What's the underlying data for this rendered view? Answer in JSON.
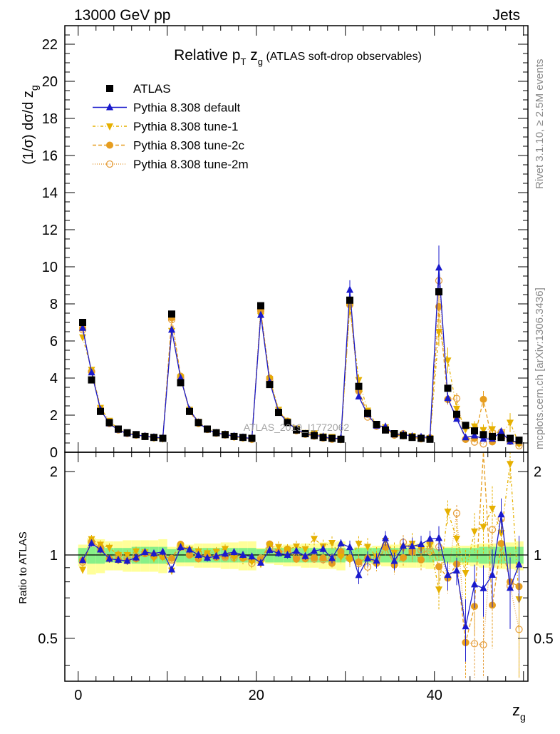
{
  "header": {
    "left": "13000 GeV pp",
    "right": "Jets"
  },
  "side_labels": {
    "rivet": "Rivet 3.1.10, ≥ 2.5M events",
    "mcplots": "mcplots.cern.ch [arXiv:1306.3436]"
  },
  "watermark": "ATLAS_2019_I1772062",
  "chart_data": {
    "type": "scatter",
    "title_parts": {
      "main": "Relative p",
      "sub1": "T",
      "mid": " z",
      "sub2": "g",
      "suffix": " (ATLAS soft-drop observables)"
    },
    "ylabel_main": {
      "pre": "(1/σ) dσ/d z",
      "sub": "g"
    },
    "xlabel": {
      "main": "z",
      "sub": "g"
    },
    "ylabel_ratio": "Ratio to ATLAS",
    "xlim": [
      -1.5,
      50.5
    ],
    "ylim_main": [
      0,
      23
    ],
    "ylim_ratio": [
      0.35,
      2.35
    ],
    "x_ticks": [
      "0",
      "20",
      "40"
    ],
    "y_ticks_main": [
      "0",
      "2",
      "4",
      "6",
      "8",
      "10",
      "12",
      "14",
      "16",
      "18",
      "20",
      "22"
    ],
    "y_ticks_ratio": [
      "0.5",
      "1",
      "2"
    ],
    "legend": [
      "ATLAS",
      "Pythia 8.308 default",
      "Pythia 8.308 tune-1",
      "Pythia 8.308 tune-2c",
      "Pythia 8.308 tune-2m"
    ],
    "legend_position": "top-left",
    "colors": {
      "atlas": "#000000",
      "default": "#1a1acc",
      "tune1": "#e6b000",
      "tune2c": "#e69d1f",
      "tune2m": "#e6a040",
      "band_inner": "#88f088",
      "band_outer": "#ffff99"
    },
    "x": [
      0.5,
      1.5,
      2.5,
      3.5,
      4.5,
      5.5,
      6.5,
      7.5,
      8.5,
      9.5,
      10.5,
      11.5,
      12.5,
      13.5,
      14.5,
      15.5,
      16.5,
      17.5,
      18.5,
      19.5,
      20.5,
      21.5,
      22.5,
      23.5,
      24.5,
      25.5,
      26.5,
      27.5,
      28.5,
      29.5,
      30.5,
      31.5,
      32.5,
      33.5,
      34.5,
      35.5,
      36.5,
      37.5,
      38.5,
      39.5,
      40.5,
      41.5,
      42.5,
      43.5,
      44.5,
      45.5,
      46.5,
      47.5,
      48.5,
      49.5
    ],
    "series": [
      {
        "name": "ATLAS",
        "values": [
          7.0,
          3.9,
          2.2,
          1.6,
          1.25,
          1.05,
          0.95,
          0.85,
          0.8,
          0.75,
          7.45,
          3.75,
          2.2,
          1.6,
          1.25,
          1.05,
          0.95,
          0.85,
          0.8,
          0.75,
          7.9,
          3.65,
          2.15,
          1.6,
          1.2,
          1.0,
          0.9,
          0.8,
          0.75,
          0.7,
          8.2,
          3.55,
          2.1,
          1.5,
          1.2,
          1.0,
          0.9,
          0.8,
          0.75,
          0.7,
          8.65,
          3.45,
          2.05,
          1.45,
          1.15,
          0.95,
          0.85,
          0.8,
          0.75,
          0.65
        ],
        "band_inner": [
          0.06,
          0.07,
          0.07,
          0.06,
          0.06,
          0.06,
          0.07,
          0.07,
          0.07,
          0.07,
          0.05,
          0.06,
          0.06,
          0.06,
          0.06,
          0.06,
          0.06,
          0.06,
          0.06,
          0.06,
          0.05,
          0.06,
          0.06,
          0.06,
          0.06,
          0.06,
          0.06,
          0.06,
          0.06,
          0.06,
          0.05,
          0.06,
          0.06,
          0.06,
          0.06,
          0.06,
          0.06,
          0.06,
          0.06,
          0.06,
          0.05,
          0.06,
          0.06,
          0.06,
          0.06,
          0.07,
          0.07,
          0.07,
          0.07,
          0.07
        ],
        "band_outer": [
          0.09,
          0.15,
          0.14,
          0.12,
          0.12,
          0.13,
          0.13,
          0.13,
          0.13,
          0.14,
          0.07,
          0.09,
          0.09,
          0.1,
          0.1,
          0.1,
          0.11,
          0.11,
          0.12,
          0.12,
          0.06,
          0.07,
          0.08,
          0.09,
          0.09,
          0.1,
          0.1,
          0.11,
          0.11,
          0.12,
          0.05,
          0.07,
          0.07,
          0.08,
          0.09,
          0.09,
          0.1,
          0.1,
          0.1,
          0.11,
          0.05,
          0.07,
          0.08,
          0.08,
          0.09,
          0.1,
          0.1,
          0.11,
          0.11,
          0.12
        ]
      },
      {
        "name": "Pythia 8.308 default",
        "values": [
          6.7,
          4.3,
          2.3,
          1.55,
          1.2,
          1.0,
          0.93,
          0.87,
          0.81,
          0.77,
          6.6,
          4.0,
          2.3,
          1.6,
          1.22,
          1.04,
          0.96,
          0.87,
          0.8,
          0.74,
          7.4,
          3.8,
          2.18,
          1.6,
          1.24,
          0.99,
          0.93,
          0.84,
          0.73,
          0.77,
          8.75,
          3.0,
          2.04,
          1.43,
          1.38,
          0.95,
          0.97,
          0.86,
          0.82,
          0.8,
          9.95,
          2.92,
          1.8,
          0.8,
          0.9,
          0.72,
          0.72,
          1.12,
          0.57,
          0.6
        ],
        "ratio_err": [
          0.02,
          0.03,
          0.03,
          0.03,
          0.03,
          0.03,
          0.03,
          0.03,
          0.03,
          0.03,
          0.02,
          0.03,
          0.03,
          0.03,
          0.03,
          0.03,
          0.03,
          0.03,
          0.03,
          0.03,
          0.02,
          0.03,
          0.03,
          0.03,
          0.03,
          0.03,
          0.03,
          0.04,
          0.04,
          0.04,
          0.06,
          0.06,
          0.06,
          0.06,
          0.07,
          0.07,
          0.07,
          0.08,
          0.08,
          0.08,
          0.12,
          0.1,
          0.1,
          0.14,
          0.14,
          0.16,
          0.2,
          0.2,
          0.22,
          0.25
        ]
      },
      {
        "name": "Pythia 8.308 tune-1",
        "values": [
          6.2,
          4.45,
          2.4,
          1.7,
          1.25,
          1.05,
          0.98,
          0.87,
          0.78,
          0.74,
          6.55,
          4.05,
          2.3,
          1.65,
          1.27,
          1.08,
          1.0,
          0.83,
          0.78,
          0.71,
          7.35,
          3.95,
          2.3,
          1.67,
          1.29,
          1.05,
          1.03,
          0.86,
          0.83,
          0.69,
          7.9,
          3.9,
          2.25,
          1.48,
          1.35,
          1.02,
          0.95,
          0.88,
          0.79,
          0.76,
          6.5,
          4.95,
          2.35,
          1.25,
          1.4,
          1.2,
          1.25,
          0.96,
          1.6,
          0.45
        ],
        "ratio_err": [
          0.03,
          0.04,
          0.04,
          0.04,
          0.04,
          0.04,
          0.04,
          0.04,
          0.04,
          0.04,
          0.03,
          0.04,
          0.04,
          0.04,
          0.04,
          0.04,
          0.04,
          0.04,
          0.05,
          0.05,
          0.03,
          0.04,
          0.05,
          0.05,
          0.05,
          0.05,
          0.06,
          0.06,
          0.06,
          0.06,
          0.06,
          0.07,
          0.08,
          0.08,
          0.09,
          0.09,
          0.1,
          0.1,
          0.1,
          0.11,
          0.12,
          0.14,
          0.16,
          0.18,
          0.2,
          0.25,
          0.3,
          0.3,
          0.32,
          0.35
        ]
      },
      {
        "name": "Pythia 8.308 tune-2c",
        "values": [
          6.7,
          4.35,
          2.35,
          1.55,
          1.2,
          1.0,
          0.92,
          0.86,
          0.8,
          0.74,
          7.25,
          4.1,
          2.2,
          1.55,
          1.25,
          1.03,
          0.94,
          0.85,
          0.78,
          0.72,
          7.6,
          4.0,
          2.2,
          1.68,
          1.16,
          0.97,
          0.88,
          0.78,
          0.7,
          0.72,
          8.0,
          3.35,
          2.05,
          1.4,
          1.28,
          0.92,
          0.88,
          0.82,
          0.72,
          0.78,
          7.85,
          2.85,
          1.9,
          0.7,
          0.75,
          2.85,
          0.56,
          0.88,
          0.6,
          0.5
        ],
        "ratio_err": [
          0.02,
          0.03,
          0.03,
          0.03,
          0.03,
          0.03,
          0.03,
          0.03,
          0.03,
          0.03,
          0.02,
          0.03,
          0.03,
          0.03,
          0.03,
          0.03,
          0.03,
          0.03,
          0.03,
          0.03,
          0.02,
          0.03,
          0.03,
          0.03,
          0.03,
          0.03,
          0.03,
          0.04,
          0.04,
          0.04,
          0.06,
          0.06,
          0.06,
          0.06,
          0.07,
          0.07,
          0.07,
          0.08,
          0.08,
          0.08,
          0.12,
          0.1,
          0.1,
          0.14,
          0.14,
          0.16,
          0.2,
          0.2,
          0.22,
          0.25
        ]
      },
      {
        "name": "Pythia 8.308 tune-2m",
        "values": [
          6.6,
          4.35,
          2.3,
          1.55,
          1.25,
          1.02,
          0.94,
          0.86,
          0.79,
          0.75,
          7.15,
          4.0,
          2.2,
          1.62,
          1.23,
          1.03,
          0.93,
          0.83,
          0.78,
          0.7,
          7.7,
          3.85,
          2.2,
          1.65,
          1.18,
          0.98,
          0.87,
          0.77,
          0.73,
          0.7,
          7.95,
          3.3,
          1.9,
          1.45,
          1.3,
          0.98,
          1.0,
          0.83,
          0.78,
          0.72,
          9.25,
          2.85,
          2.9,
          0.7,
          0.55,
          0.45,
          1.05,
          1.08,
          0.58,
          0.35
        ],
        "ratio_err": [
          0.02,
          0.03,
          0.03,
          0.03,
          0.03,
          0.03,
          0.03,
          0.03,
          0.03,
          0.03,
          0.02,
          0.03,
          0.03,
          0.03,
          0.03,
          0.03,
          0.03,
          0.03,
          0.03,
          0.03,
          0.02,
          0.03,
          0.03,
          0.03,
          0.03,
          0.03,
          0.03,
          0.04,
          0.04,
          0.04,
          0.06,
          0.06,
          0.06,
          0.06,
          0.07,
          0.07,
          0.07,
          0.08,
          0.08,
          0.08,
          0.12,
          0.1,
          0.1,
          0.14,
          0.14,
          0.16,
          0.2,
          0.2,
          0.22,
          0.25
        ]
      }
    ]
  }
}
